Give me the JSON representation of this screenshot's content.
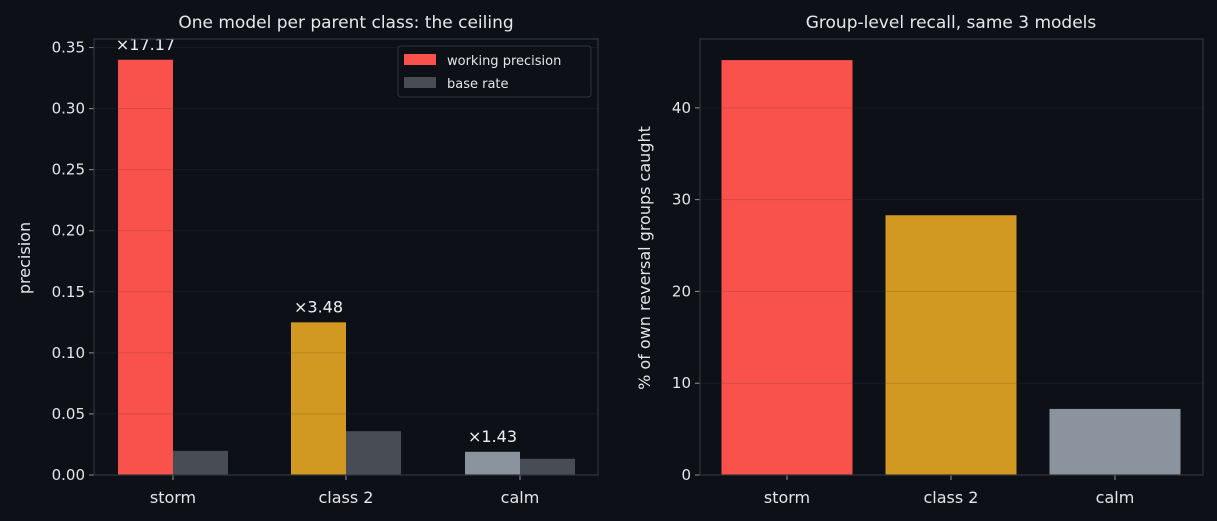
{
  "chart_data": [
    {
      "type": "bar",
      "title": "One model per parent class: the ceiling",
      "xlabel": "",
      "ylabel": "precision",
      "categories": [
        "storm",
        "class 2",
        "calm"
      ],
      "series": [
        {
          "name": "working precision",
          "values": [
            0.34,
            0.125,
            0.019
          ],
          "colors": [
            "#f9524c",
            "#d29922",
            "#8b949e"
          ]
        },
        {
          "name": "base rate",
          "values": [
            0.0198,
            0.0359,
            0.0133
          ],
          "colors": [
            "#484c55",
            "#484c55",
            "#484c55"
          ]
        }
      ],
      "annotations": [
        "×17.17",
        "×3.48",
        "×1.43"
      ],
      "ylim": [
        0,
        0.357
      ],
      "yticks": [
        0,
        0.05,
        0.1,
        0.15,
        0.2,
        0.25,
        0.3,
        0.35
      ],
      "ytick_labels": [
        "0.00",
        "0.05",
        "0.10",
        "0.15",
        "0.20",
        "0.25",
        "0.30",
        "0.35"
      ],
      "grid": true,
      "legend": "top-right"
    },
    {
      "type": "bar",
      "title": "Group-level recall, same 3 models",
      "xlabel": "",
      "ylabel": "% of own reversal groups caught",
      "categories": [
        "storm",
        "class 2",
        "calm"
      ],
      "values": [
        45.2,
        28.3,
        7.2
      ],
      "colors": [
        "#f9524c",
        "#d29922",
        "#8b949e"
      ],
      "ylim": [
        0,
        47.5
      ],
      "yticks": [
        0,
        10,
        20,
        30,
        40
      ],
      "ytick_labels": [
        "0",
        "10",
        "20",
        "30",
        "40"
      ],
      "grid": true
    }
  ],
  "colors": {
    "background": "#0d1017",
    "panel": "#0d1017",
    "axes_border": "#30363d",
    "grid": "#1a1f27"
  }
}
